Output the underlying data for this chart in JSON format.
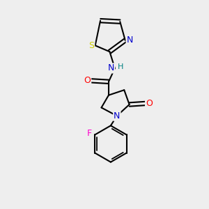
{
  "background_color": "#eeeeee",
  "bond_color": "#000000",
  "atom_colors": {
    "N": "#0000cc",
    "O": "#ff0000",
    "S": "#cccc00",
    "F": "#ff00cc",
    "H_on_N": "#008080",
    "C": "#000000"
  },
  "lw": 1.5,
  "lw_inner": 1.3
}
